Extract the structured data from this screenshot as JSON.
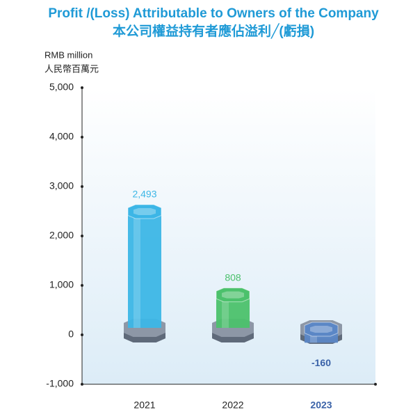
{
  "chart_data": {
    "type": "bar",
    "title": "Profit /(Loss) Attributable to Owners of the Company",
    "subtitle": "本公司權益持有者應佔溢利╱(虧損)",
    "y_label": [
      "RMB million",
      "人民幣百萬元"
    ],
    "categories": [
      "2021",
      "2022",
      "2023"
    ],
    "values": [
      2493,
      808,
      -160
    ],
    "value_labels": [
      "2,493",
      "808",
      "-160"
    ],
    "colors": [
      "#3cb6e6",
      "#4cc16c",
      "#5b87c6"
    ],
    "ylim": [
      -1000,
      5000
    ],
    "yticks": [
      {
        "value": -1000,
        "label": "-1,000"
      },
      0,
      {
        "value": 1000,
        "label": "1,000"
      },
      {
        "value": 2000,
        "label": "2,000"
      },
      {
        "value": 3000,
        "label": "3,000"
      },
      {
        "value": 4000,
        "label": "4,000"
      },
      {
        "value": 5000,
        "label": "5,000"
      }
    ]
  }
}
